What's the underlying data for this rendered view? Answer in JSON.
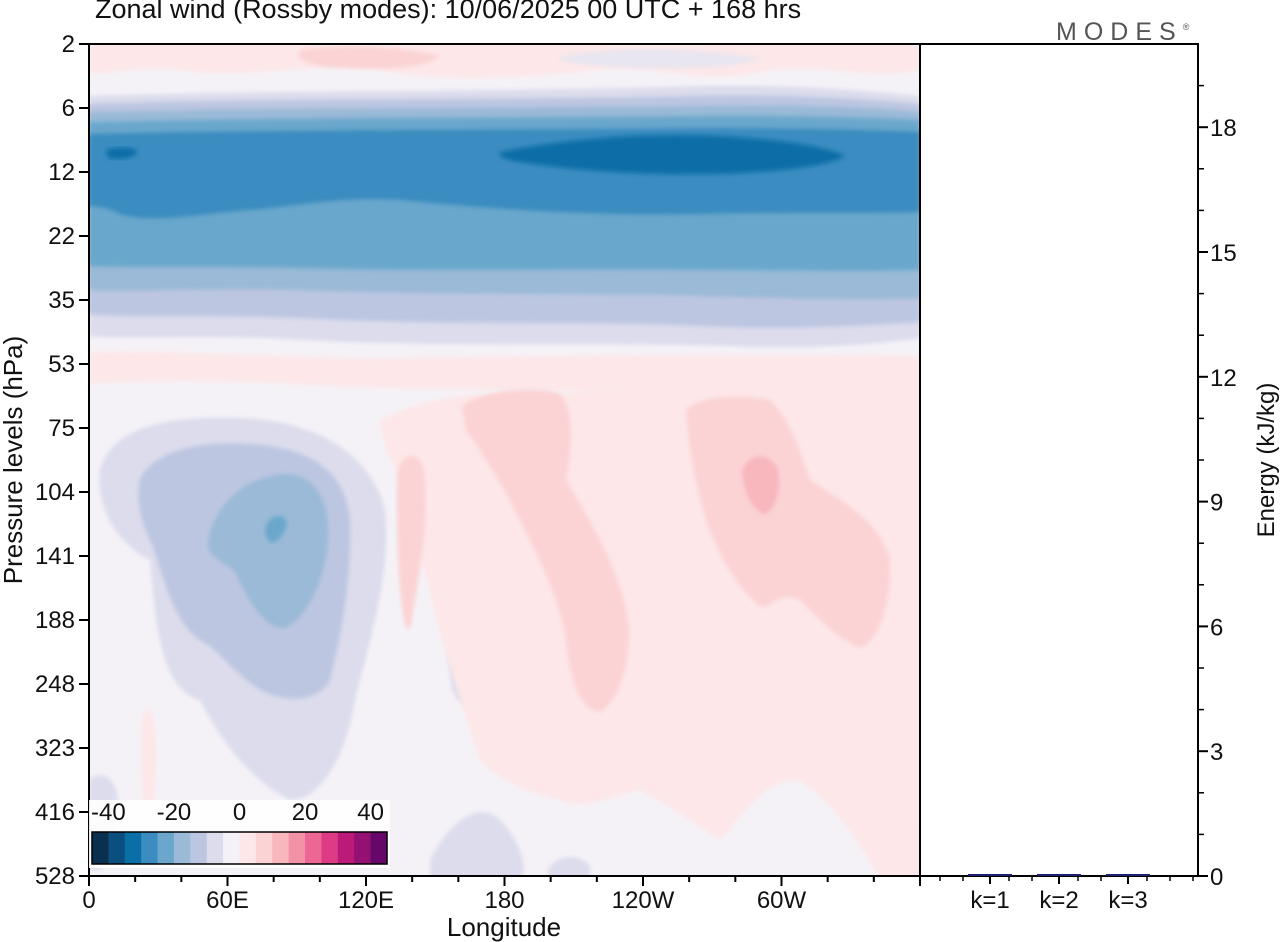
{
  "header": {
    "title": "Zonal wind (Rossby modes):  10/06/2025  00 UTC  + 168 hrs",
    "logo_text": "MODES",
    "logo_mark": "®"
  },
  "chart_data": [
    {
      "type": "heatmap",
      "xlabel": "Longitude",
      "ylabel": "Pressure levels (hPa)",
      "xticks": [
        "0",
        "60E",
        "120E",
        "180",
        "120W",
        "60W"
      ],
      "yticks": [
        "2",
        "6",
        "12",
        "22",
        "35",
        "53",
        "75",
        "104",
        "141",
        "188",
        "248",
        "323",
        "416",
        "528"
      ],
      "xlim": [
        0,
        360
      ],
      "colorbar": {
        "ticks": [
          "-40",
          "-20",
          "0",
          "20",
          "40"
        ],
        "range": [
          -45,
          45
        ],
        "colors": [
          "#0b2f4e",
          "#0b4f80",
          "#0a6ea7",
          "#3b8cc0",
          "#6ba7cc",
          "#9abad7",
          "#bcc6e1",
          "#dcdcec",
          "#f5f2f7",
          "#fde7e8",
          "#fbd3d4",
          "#f8b6bd",
          "#f392a7",
          "#ec6794",
          "#dd3b86",
          "#bb1a79",
          "#941072",
          "#66086a"
        ]
      },
      "features": [
        {
          "desc": "upper easterly jet",
          "level_range_hPa": [
            7,
            30
          ],
          "min_value": -33
        },
        {
          "desc": "easterly core 60E-120E",
          "lon": 80,
          "level_hPa": 120,
          "min_value": -22
        },
        {
          "desc": "westerly maximum",
          "lon": 290,
          "level_hPa": 110,
          "max_value": 11
        }
      ]
    },
    {
      "type": "bar",
      "ylabel": "Energy (kJ/kg)",
      "categories": [
        "k=1",
        "k=2",
        "k=3"
      ],
      "values": [
        0.04,
        0.02,
        0.01
      ],
      "ylim": [
        0,
        20
      ],
      "yticks": [
        "0",
        "3",
        "6",
        "9",
        "12",
        "15",
        "18"
      ],
      "bar_color": "#1e1e6e"
    }
  ]
}
